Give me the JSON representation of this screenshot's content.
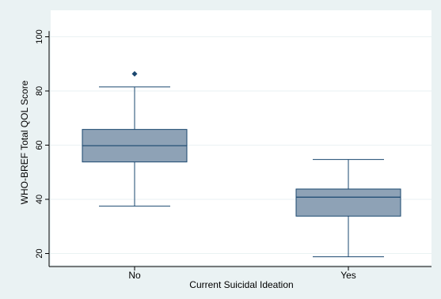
{
  "chart_data": {
    "type": "box",
    "xlabel": "Current Suicidal Ideation",
    "ylabel": "WHO-BREF Total QOL Score",
    "ylim": [
      15,
      103
    ],
    "yticks": [
      20,
      40,
      60,
      80,
      100
    ],
    "grid": true,
    "categories": [
      "No",
      "Yes"
    ],
    "boxes": [
      {
        "category": "No",
        "whisker_low": 37.5,
        "q1": 53.8,
        "median": 59.8,
        "q3": 65.8,
        "whisker_high": 81.5,
        "outliers": [
          86.3
        ]
      },
      {
        "category": "Yes",
        "whisker_low": 18.8,
        "q1": 33.8,
        "median": 40.8,
        "q3": 43.8,
        "whisker_high": 54.7,
        "outliers": []
      }
    ]
  },
  "colors": {
    "background": "#eaf2f3",
    "plot_area": "#ffffff",
    "box_fill": "#8ea2b6",
    "box_stroke": "#1a476f",
    "grid": "#eaf2f3",
    "axis": "#000000"
  }
}
